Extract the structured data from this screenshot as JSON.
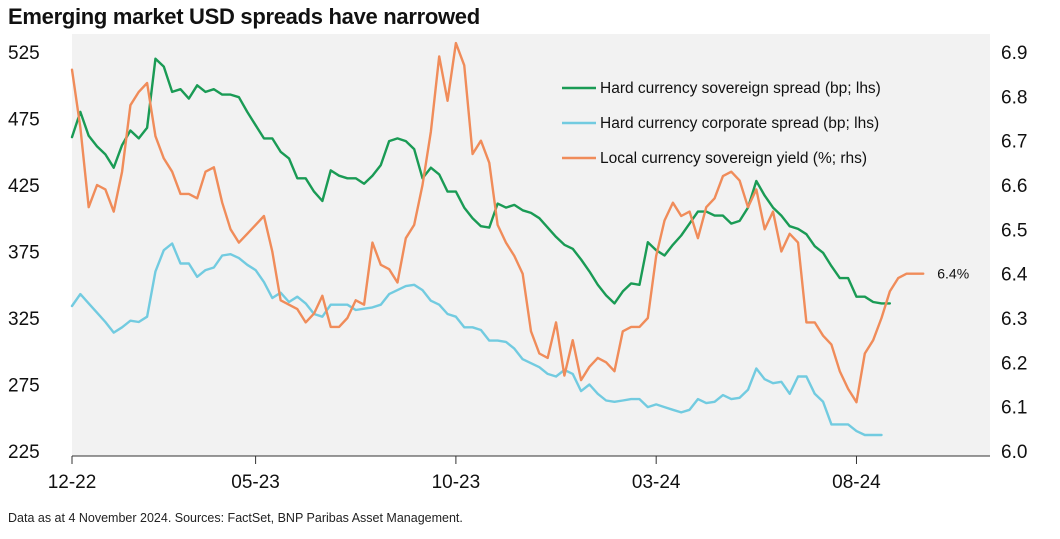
{
  "title": "Emerging market USD spreads have narrowed",
  "source": "Data as at 4 November 2024.  Sources: FactSet, BNP Paribas Asset Management.",
  "colors": {
    "plot_bg": "#f2f2f2",
    "green": "#1a9b55",
    "blue": "#72cbe0",
    "orange": "#f08c5a"
  },
  "chart_data": {
    "type": "line",
    "title": "Emerging market USD spreads have narrowed",
    "x_tick_labels": [
      "12-22",
      "05-23",
      "10-23",
      "03-24",
      "08-24"
    ],
    "x_tick_positions": [
      0,
      22,
      46,
      70,
      94
    ],
    "x_range": [
      0,
      110
    ],
    "y_left": {
      "range": [
        225,
        525
      ],
      "ticks": [
        "525",
        "475",
        "425",
        "375",
        "325",
        "275",
        "225"
      ],
      "label": "bp"
    },
    "y_right": {
      "range": [
        6.0,
        6.9
      ],
      "ticks": [
        "6.9",
        "6.8",
        "6.7",
        "6.6",
        "6.5",
        "6.4",
        "6.3",
        "6.2",
        "6.1",
        "6.0"
      ],
      "label": "%"
    },
    "legend": [
      "Hard currency sovereign spread (bp; lhs)",
      "Hard currency corporate spread (bp; lhs)",
      "Local currency sovereign yield (%; rhs)"
    ],
    "annotation": "6.4%",
    "series": [
      {
        "name": "Hard currency sovereign spread (bp; lhs)",
        "axis": "left",
        "color": "#1a9b55",
        "values": [
          461,
          480,
          462,
          454,
          448,
          438,
          455,
          466,
          460,
          468,
          520,
          514,
          495,
          497,
          490,
          500,
          495,
          497,
          493,
          493,
          491,
          480,
          470,
          460,
          460,
          450,
          445,
          430,
          430,
          420,
          413,
          436,
          432,
          430,
          430,
          426,
          432,
          440,
          458,
          460,
          458,
          452,
          430,
          438,
          433,
          420,
          420,
          408,
          400,
          394,
          393,
          411,
          408,
          410,
          406,
          404,
          400,
          393,
          386,
          380,
          377,
          369,
          360,
          350,
          342,
          336,
          345,
          351,
          350,
          382,
          376,
          372,
          380,
          387,
          396,
          405,
          405,
          402,
          402,
          396,
          398,
          408,
          428,
          417,
          408,
          402,
          394,
          392,
          388,
          379,
          374,
          364,
          355,
          355,
          341,
          341,
          337,
          336,
          336
        ]
      },
      {
        "name": "Hard currency corporate spread (bp; lhs)",
        "axis": "left",
        "color": "#72cbe0",
        "values": [
          334,
          343,
          336,
          329,
          322,
          314,
          318,
          323,
          322,
          326,
          360,
          376,
          381,
          366,
          366,
          356,
          361,
          363,
          372,
          373,
          370,
          365,
          361,
          352,
          340,
          344,
          337,
          341,
          336,
          328,
          326,
          335,
          335,
          335,
          331,
          332,
          333,
          335,
          343,
          346,
          349,
          350,
          346,
          338,
          335,
          328,
          326,
          318,
          318,
          316,
          308,
          308,
          307,
          302,
          294,
          291,
          288,
          283,
          281,
          286,
          283,
          270,
          275,
          268,
          263,
          262,
          263,
          264,
          264,
          258,
          260,
          258,
          256,
          254,
          256,
          264,
          261,
          262,
          267,
          264,
          265,
          271,
          287,
          279,
          276,
          277,
          268,
          281,
          281,
          268,
          262,
          245,
          245,
          245,
          240,
          237,
          237,
          237
        ]
      },
      {
        "name": "Local currency sovereign yield (%; rhs)",
        "axis": "right",
        "color": "#f08c5a",
        "values": [
          6.86,
          6.73,
          6.55,
          6.6,
          6.59,
          6.54,
          6.63,
          6.78,
          6.81,
          6.83,
          6.71,
          6.66,
          6.63,
          6.58,
          6.58,
          6.57,
          6.63,
          6.64,
          6.56,
          6.5,
          6.47,
          6.49,
          6.51,
          6.53,
          6.45,
          6.34,
          6.33,
          6.32,
          6.29,
          6.31,
          6.35,
          6.28,
          6.28,
          6.3,
          6.34,
          6.33,
          6.47,
          6.42,
          6.41,
          6.38,
          6.48,
          6.51,
          6.6,
          6.72,
          6.89,
          6.79,
          6.92,
          6.87,
          6.67,
          6.7,
          6.65,
          6.51,
          6.47,
          6.44,
          6.4,
          6.27,
          6.22,
          6.21,
          6.29,
          6.17,
          6.25,
          6.16,
          6.19,
          6.21,
          6.2,
          6.18,
          6.27,
          6.28,
          6.28,
          6.3,
          6.44,
          6.52,
          6.56,
          6.53,
          6.54,
          6.48,
          6.55,
          6.57,
          6.62,
          6.63,
          6.61,
          6.55,
          6.59,
          6.5,
          6.54,
          6.45,
          6.49,
          6.47,
          6.29,
          6.29,
          6.26,
          6.24,
          6.18,
          6.14,
          6.11,
          6.22,
          6.25,
          6.3,
          6.36,
          6.39,
          6.4,
          6.4,
          6.4
        ]
      }
    ]
  }
}
